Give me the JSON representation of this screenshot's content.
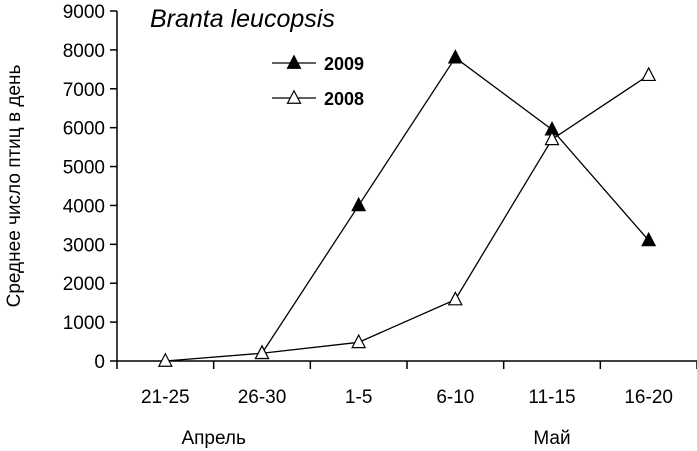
{
  "chart_data": {
    "type": "line",
    "title": "Branta leucopsis",
    "ylabel": "Среднее число птиц в день",
    "xlabel": "",
    "categories": [
      "21-25",
      "26-30",
      "1-5",
      "6-10",
      "11-15",
      "16-20"
    ],
    "month_groups": [
      {
        "label": "Апрель",
        "categories": [
          "21-25",
          "26-30"
        ]
      },
      {
        "label": "Май",
        "categories": [
          "11-15"
        ]
      }
    ],
    "ylim": [
      0,
      9000
    ],
    "y_ticks": [
      0,
      1000,
      2000,
      3000,
      4000,
      5000,
      6000,
      7000,
      8000,
      9000
    ],
    "y_tick_labels": [
      "0",
      "1000",
      "2000",
      "3000",
      "4000",
      "5000",
      "6000",
      "7000",
      "8000",
      "9000"
    ],
    "grid": false,
    "legend_position": "top-center",
    "series": [
      {
        "name": "2009",
        "marker": "filled-triangle",
        "color": "#000000",
        "values": [
          null,
          200,
          4000,
          7800,
          5950,
          3100
        ]
      },
      {
        "name": "2008",
        "marker": "open-triangle",
        "color": "#000000",
        "values": [
          0,
          200,
          480,
          1580,
          5700,
          7350
        ]
      }
    ]
  }
}
